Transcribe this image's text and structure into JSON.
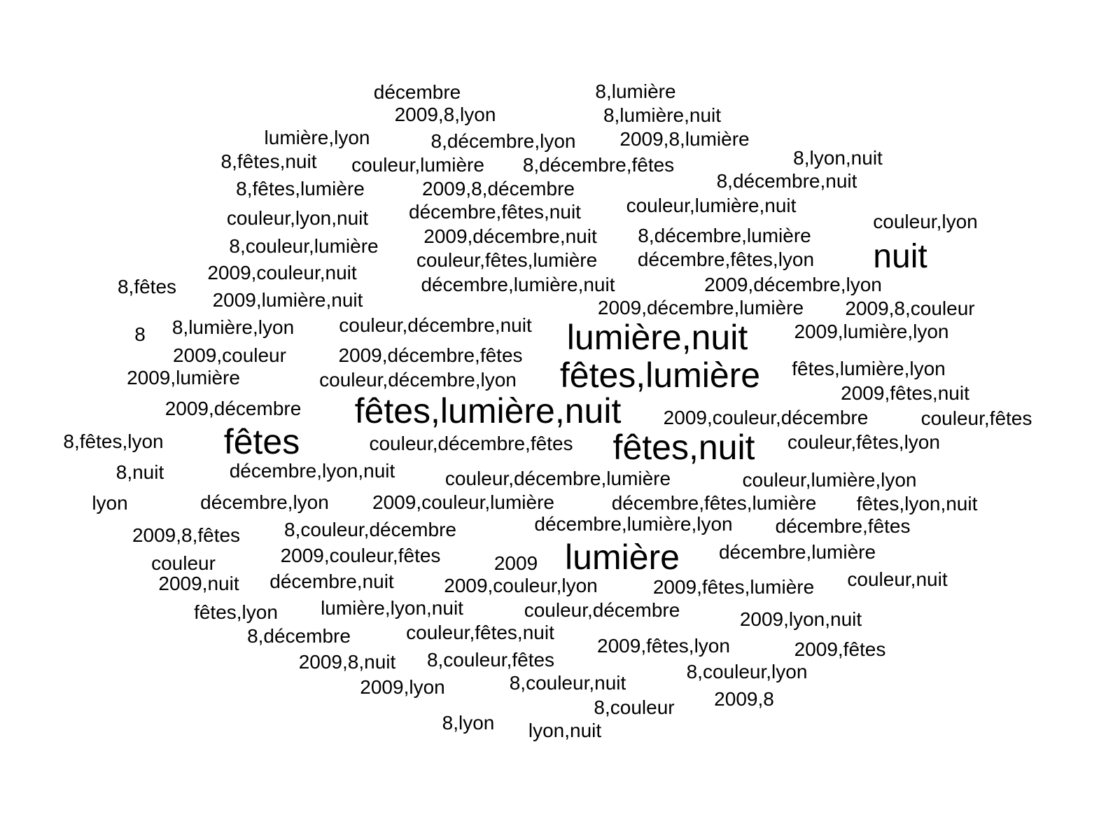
{
  "words": [
    "décembre",
    "8,lumière",
    "2009,8,lyon",
    "8,lumière,nuit",
    "lumière,lyon",
    "8,décembre,lyon",
    "2009,8,lumière",
    "8,lyon,nuit",
    "8,fêtes,nuit",
    "couleur,lumière",
    "8,décembre,fêtes",
    "8,décembre,nuit",
    "8,fêtes,lumière",
    "2009,8,décembre",
    "couleur,lumière,nuit",
    "couleur,lyon,nuit",
    "décembre,fêtes,nuit",
    "couleur,lyon",
    "2009,décembre,nuit",
    "8,décembre,lumière",
    "8,couleur,lumière",
    "nuit",
    "couleur,fêtes,lumière",
    "décembre,fêtes,lyon",
    "2009,couleur,nuit",
    "8,fêtes",
    "décembre,lumière,nuit",
    "2009,décembre,lyon",
    "2009,lumière,nuit",
    "2009,décembre,lumière",
    "2009,8,couleur",
    "8",
    "8,lumière,lyon",
    "couleur,décembre,nuit",
    "lumière,nuit",
    "2009,lumière,lyon",
    "2009,couleur",
    "2009,décembre,fêtes",
    "fêtes,lumière,lyon",
    "2009,lumière",
    "couleur,décembre,lyon",
    "fêtes,lumière",
    "2009,fêtes,nuit",
    "2009,décembre",
    "fêtes,lumière,nuit",
    "2009,couleur,décembre",
    "couleur,fêtes",
    "8,fêtes,lyon",
    "fêtes",
    "couleur,décembre,fêtes",
    "fêtes,nuit",
    "couleur,fêtes,lyon",
    "8,nuit",
    "décembre,lyon,nuit",
    "couleur,décembre,lumière",
    "couleur,lumière,lyon",
    "lyon",
    "décembre,lyon",
    "2009,couleur,lumière",
    "décembre,fêtes,lumière",
    "fêtes,lyon,nuit",
    "décembre,lumière,lyon",
    "2009,8,fêtes",
    "8,couleur,décembre",
    "décembre,fêtes",
    "couleur",
    "2009,couleur,fêtes",
    "2009",
    "lumière",
    "décembre,lumière",
    "2009,nuit",
    "décembre,nuit",
    "2009,couleur,lyon",
    "2009,fêtes,lumière",
    "couleur,nuit",
    "fêtes,lyon",
    "lumière,lyon,nuit",
    "couleur,décembre",
    "2009,lyon,nuit",
    "8,décembre",
    "couleur,fêtes,nuit",
    "2009,fêtes,lyon",
    "2009,fêtes",
    "2009,8,nuit",
    "8,couleur,fêtes",
    "8,couleur,lyon",
    "2009,lyon",
    "8,couleur,nuit",
    "2009,8",
    "8,couleur",
    "8,lyon",
    "lyon,nuit"
  ]
}
